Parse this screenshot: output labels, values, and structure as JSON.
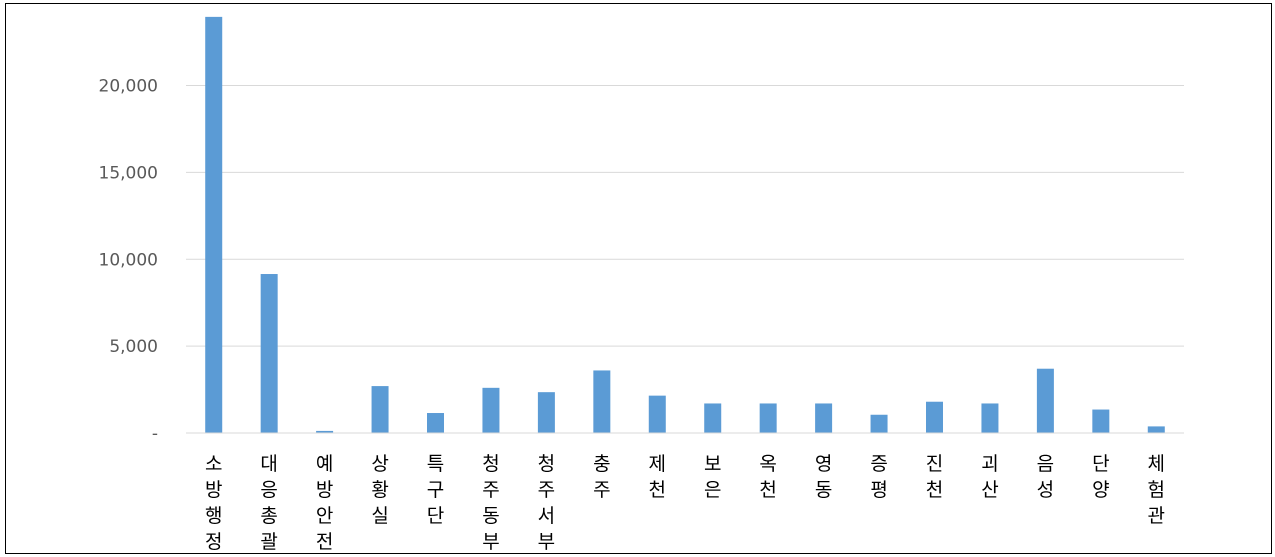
{
  "chart_data": {
    "type": "bar",
    "categories": [
      "소방행정",
      "대응총괄",
      "예방안전",
      "상황실",
      "특구단",
      "청주동부",
      "청주서부",
      "충주",
      "제천",
      "보은",
      "옥천",
      "영동",
      "증평",
      "진천",
      "괴산",
      "음성",
      "단양",
      "체험관"
    ],
    "values": [
      23950,
      9150,
      120,
      2700,
      1150,
      2600,
      2350,
      3600,
      2150,
      1700,
      1700,
      1700,
      1050,
      1800,
      1700,
      3700,
      1350,
      380
    ],
    "yticks": [
      0,
      5000,
      10000,
      15000,
      20000
    ],
    "ytick_labels": [
      "-",
      "5,000",
      "10,000",
      "15,000",
      "20,000"
    ],
    "ylim": [
      0,
      24000
    ],
    "grid": true,
    "legend": "none",
    "bar_color": "#5b9bd5",
    "grid_color": "#d9d9d9",
    "title": "",
    "xlabel": "",
    "ylabel": ""
  }
}
